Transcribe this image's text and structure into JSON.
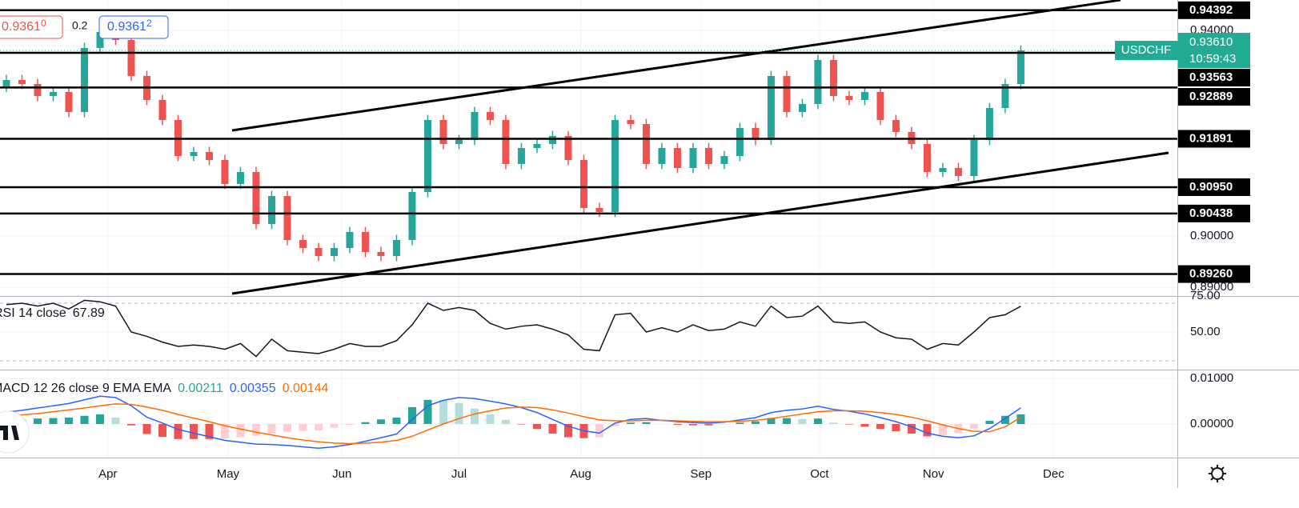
{
  "trade_panel": {
    "sell": "0.9361",
    "sell_sup": "0",
    "spread": "0.2",
    "buy": "0.9361",
    "buy_sup": "2"
  },
  "chart_data": [
    {
      "type": "candlestick",
      "open": [
        0.929,
        0.93035,
        0.92957,
        0.92724,
        0.92802,
        0.92412,
        0.93658,
        0.93969,
        0.93813,
        0.93113,
        0.92646,
        0.92257,
        0.91556,
        0.91634,
        0.91479,
        0.91012,
        0.91245,
        0.90233,
        0.90778,
        0.89922,
        0.89767,
        0.89611,
        0.89767,
        0.90078,
        0.89689,
        0.89611,
        0.89922,
        0.90856,
        0.92257,
        0.9179,
        0.91868,
        0.92412,
        0.92257,
        0.91401,
        0.91712,
        0.9179,
        0.91946,
        0.91479,
        0.90545,
        0.90467,
        0.92257,
        0.92179,
        0.91401,
        0.91712,
        0.91323,
        0.91712,
        0.91401,
        0.91556,
        0.92101,
        0.91868,
        0.93113,
        0.92412,
        0.92568,
        0.93424,
        0.92724,
        0.92646,
        0.92802,
        0.92257,
        0.92023,
        0.9179,
        0.91245,
        0.91323,
        0.91167,
        0.91868,
        0.9249,
        0.92957
      ],
      "high": [
        0.93135,
        0.93135,
        0.93057,
        0.92902,
        0.92902,
        0.93758,
        0.94069,
        0.94069,
        0.93913,
        0.93213,
        0.92746,
        0.92357,
        0.91734,
        0.91734,
        0.91579,
        0.91345,
        0.91345,
        0.90878,
        0.90878,
        0.90022,
        0.89867,
        0.89867,
        0.90178,
        0.90178,
        0.89789,
        0.90022,
        0.90956,
        0.92357,
        0.92357,
        0.91968,
        0.92512,
        0.92512,
        0.92357,
        0.91812,
        0.9189,
        0.92046,
        0.92046,
        0.91579,
        0.90645,
        0.92357,
        0.92357,
        0.92279,
        0.91812,
        0.91812,
        0.91812,
        0.91812,
        0.91656,
        0.92201,
        0.92201,
        0.93213,
        0.93213,
        0.92668,
        0.93524,
        0.93524,
        0.92824,
        0.92902,
        0.92902,
        0.92357,
        0.92123,
        0.9189,
        0.91423,
        0.91423,
        0.91968,
        0.9259,
        0.93057,
        0.9371
      ],
      "low": [
        0.928,
        0.92857,
        0.92624,
        0.92624,
        0.92312,
        0.92312,
        0.93558,
        0.93713,
        0.93013,
        0.92546,
        0.92157,
        0.91456,
        0.91456,
        0.91379,
        0.90912,
        0.90912,
        0.90133,
        0.90133,
        0.89822,
        0.89667,
        0.89511,
        0.89511,
        0.89667,
        0.89589,
        0.89511,
        0.89511,
        0.89822,
        0.90756,
        0.9169,
        0.9169,
        0.91768,
        0.92157,
        0.91301,
        0.91301,
        0.91612,
        0.9169,
        0.91379,
        0.90445,
        0.90367,
        0.90367,
        0.92079,
        0.91301,
        0.91301,
        0.91223,
        0.91223,
        0.91301,
        0.91301,
        0.91456,
        0.91768,
        0.91768,
        0.92312,
        0.92312,
        0.92468,
        0.92624,
        0.92546,
        0.92546,
        0.92157,
        0.91923,
        0.9169,
        0.91145,
        0.91145,
        0.91067,
        0.91067,
        0.91768,
        0.9239,
        0.92857
      ],
      "close": [
        0.93035,
        0.92957,
        0.92724,
        0.92802,
        0.92412,
        0.93658,
        0.93969,
        0.93813,
        0.93113,
        0.92646,
        0.92257,
        0.91556,
        0.91634,
        0.91479,
        0.91012,
        0.91245,
        0.90233,
        0.90778,
        0.89922,
        0.89767,
        0.89611,
        0.89767,
        0.90078,
        0.89689,
        0.89611,
        0.89922,
        0.90856,
        0.92257,
        0.9179,
        0.91868,
        0.92412,
        0.92257,
        0.91401,
        0.91712,
        0.9179,
        0.91946,
        0.91479,
        0.90545,
        0.90467,
        0.92257,
        0.92179,
        0.91401,
        0.91712,
        0.91323,
        0.91712,
        0.91401,
        0.91556,
        0.92101,
        0.91868,
        0.93113,
        0.92412,
        0.92568,
        0.93424,
        0.92724,
        0.92646,
        0.92802,
        0.92257,
        0.92023,
        0.9179,
        0.91245,
        0.91323,
        0.91167,
        0.91868,
        0.9249,
        0.92957,
        0.9361
      ],
      "colors": {
        "up": "#26a69a",
        "down": "#ef5350"
      },
      "ylim": [
        0.88833,
        0.94591
      ],
      "yticks": [
        {
          "value": 0.94,
          "label": "0.94000"
        },
        {
          "value": 0.9,
          "label": "0.90000"
        },
        {
          "value": 0.89,
          "label": "0.89000"
        }
      ],
      "xlim": [
        -0.41,
        75.03
      ],
      "xticks": [
        {
          "value": 6.5,
          "label": "Apr"
        },
        {
          "value": 14.2,
          "label": "May"
        },
        {
          "value": 21.5,
          "label": "Jun"
        },
        {
          "value": 29,
          "label": "Jul"
        },
        {
          "value": 36.8,
          "label": "Aug"
        },
        {
          "value": 44.5,
          "label": "Sep"
        },
        {
          "value": 52.1,
          "label": "Oct"
        },
        {
          "value": 59.4,
          "label": "Nov"
        },
        {
          "value": 67.1,
          "label": "Dec"
        }
      ],
      "levels": [
        {
          "value": 0.94392,
          "label": "0.94392"
        },
        {
          "value": 0.93563,
          "label": "0.93563"
        },
        {
          "value": 0.92889,
          "label": "0.92889"
        },
        {
          "value": 0.91891,
          "label": "0.91891"
        },
        {
          "value": 0.9095,
          "label": "0.90950"
        },
        {
          "value": 0.90438,
          "label": "0.90438"
        },
        {
          "value": 0.8926,
          "label": "0.89260"
        }
      ],
      "price_tag": {
        "symbol": "USDCHF",
        "price": {
          "value": 0.9361,
          "label": "0.93610"
        },
        "countdown": "10:59:43",
        "color": "#22ab94"
      }
    },
    {
      "type": "line",
      "title": "RSI 14 close",
      "color": "#131722",
      "values": [
        69,
        70,
        68,
        70,
        66,
        72,
        71,
        68,
        50,
        47,
        43,
        40,
        41,
        40,
        38,
        42,
        33,
        45,
        37,
        36,
        35,
        38,
        42,
        40,
        40,
        44,
        55,
        70,
        65,
        67,
        65,
        56,
        52,
        54,
        55,
        52,
        48,
        38,
        37,
        62,
        63,
        50,
        53,
        50,
        55,
        51,
        52,
        57,
        54,
        68,
        60,
        61,
        68,
        57,
        56,
        57,
        50,
        46,
        45,
        38,
        42,
        41,
        50,
        60,
        62,
        67.89
      ],
      "ylim": [
        23.9,
        75
      ],
      "yticks": [
        {
          "value": 75,
          "label": "75.00"
        },
        {
          "value": 50,
          "label": "50.00"
        }
      ],
      "bands": [
        70,
        30
      ]
    },
    {
      "type": "macd",
      "title": "MACD 12 26 close 9 EMA EMA",
      "histogram": {
        "colors": {
          "up_rising": "#26a69a",
          "up_falling": "#b2dfdb",
          "down_falling": "#ef5350",
          "down_rising": "#ffcdd2"
        },
        "values": [
          0.0008,
          0.001,
          0.0012,
          0.0013,
          0.0014,
          0.0018,
          0.0021,
          0.0014,
          -0.0003,
          -0.0022,
          -0.0028,
          -0.0033,
          -0.0033,
          -0.0033,
          -0.0032,
          -0.0029,
          -0.0026,
          -0.0021,
          -0.0017,
          -0.0015,
          -0.0014,
          -0.0008,
          -0.0002,
          0.0004,
          0.001,
          0.0014,
          0.0037,
          0.0053,
          0.0052,
          0.0046,
          0.0034,
          0.0021,
          0.0009,
          -0.0001,
          -0.0011,
          -0.0021,
          -0.0029,
          -0.0031,
          -0.0029,
          -0.0005,
          0.0003,
          0.0004,
          0.0,
          -0.0002,
          -0.0003,
          -0.0003,
          -0.0001,
          0.0003,
          0.0006,
          0.0013,
          0.0013,
          0.0011,
          0.0012,
          0.0003,
          -0.0001,
          -0.0006,
          -0.0011,
          -0.0016,
          -0.0021,
          -0.0027,
          -0.0025,
          -0.002,
          -0.001,
          0.0007,
          0.0018,
          0.00211
        ]
      },
      "macd": {
        "color": "#2962ff",
        "values": [
          0.0026,
          0.003,
          0.0035,
          0.004,
          0.0045,
          0.0053,
          0.0061,
          0.0058,
          0.004,
          0.0015,
          0.0002,
          -0.0012,
          -0.002,
          -0.0028,
          -0.0036,
          -0.004,
          -0.0044,
          -0.0045,
          -0.0047,
          -0.005,
          -0.0053,
          -0.005,
          -0.0045,
          -0.0038,
          -0.003,
          -0.0022,
          0.001,
          0.004,
          0.0052,
          0.0058,
          0.0056,
          0.005,
          0.0044,
          0.0036,
          0.0025,
          0.001,
          -0.0005,
          -0.0015,
          -0.002,
          0.0002,
          0.001,
          0.0012,
          0.0008,
          0.0005,
          0.0003,
          0.0002,
          0.0004,
          0.0009,
          0.0014,
          0.0025,
          0.003,
          0.0033,
          0.0039,
          0.0032,
          0.0028,
          0.0022,
          0.0014,
          0.0005,
          -0.0006,
          -0.002,
          -0.0027,
          -0.003,
          -0.0026,
          -0.001,
          0.0012,
          0.00355
        ]
      },
      "signal": {
        "color": "#ff6d00",
        "values": [
          0.0018,
          0.002,
          0.0023,
          0.0027,
          0.0031,
          0.0035,
          0.004,
          0.0044,
          0.0043,
          0.0037,
          0.003,
          0.0021,
          0.0013,
          0.0005,
          -0.0004,
          -0.0011,
          -0.0018,
          -0.0024,
          -0.003,
          -0.0035,
          -0.0039,
          -0.0042,
          -0.0043,
          -0.0042,
          -0.004,
          -0.0036,
          -0.0027,
          -0.0013,
          0.0,
          0.0012,
          0.0022,
          0.0029,
          0.0035,
          0.0037,
          0.0036,
          0.0031,
          0.0024,
          0.0016,
          0.0009,
          0.0007,
          0.0007,
          0.0008,
          0.0008,
          0.0007,
          0.0006,
          0.0005,
          0.0005,
          0.0006,
          0.0008,
          0.0012,
          0.0017,
          0.0022,
          0.0027,
          0.0029,
          0.0029,
          0.0028,
          0.0025,
          0.0021,
          0.0015,
          0.0007,
          -0.0002,
          -0.001,
          -0.0016,
          -0.0017,
          -0.0006,
          0.00144
        ]
      },
      "ylim": [
        -0.00737,
        0.01193
      ],
      "yticks": [
        {
          "value": 0.01,
          "label": "0.01000"
        },
        {
          "value": 0,
          "label": "0.00000"
        }
      ]
    }
  ]
}
